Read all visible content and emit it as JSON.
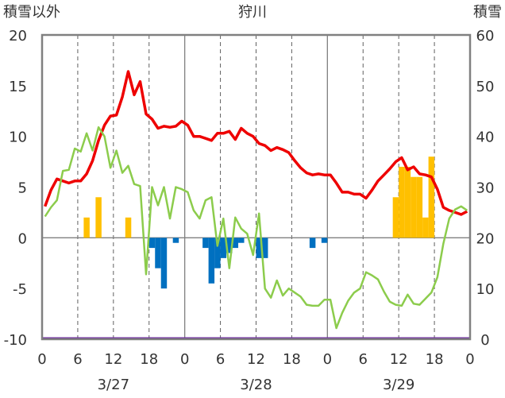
{
  "chart_data": {
    "type": "bar+line",
    "title": "狩川",
    "left_axis_title": "積雪以外",
    "right_axis_title": "積雪",
    "left_axis": {
      "range": [
        -10,
        20
      ],
      "ticks": [
        "-10",
        "-5",
        "0",
        "5",
        "10",
        "15",
        "20"
      ]
    },
    "right_axis": {
      "range": [
        0,
        60
      ],
      "ticks": [
        "0",
        "10",
        "20",
        "30",
        "40",
        "50",
        "60"
      ]
    },
    "x_axis": {
      "hour_ticks": [
        "0",
        "6",
        "12",
        "18",
        "0",
        "6",
        "12",
        "18",
        "0",
        "6",
        "12",
        "18",
        "0"
      ],
      "date_labels": [
        "3/27",
        "3/28",
        "3/29"
      ]
    },
    "grid": true,
    "colors": {
      "temperature": "#ee0000",
      "snow_depth": "#8ccc4c",
      "precipitation": "#ffc000",
      "snow_change": "#0070c0",
      "baseline": "#7030a0",
      "frame": "#808080"
    },
    "series": [
      {
        "key": "temperature",
        "axis": "left",
        "style": "line",
        "values": [
          3.1,
          4.7,
          5.8,
          5.6,
          5.4,
          5.6,
          5.6,
          6.3,
          7.6,
          9.6,
          11.1,
          12.0,
          12.1,
          13.9,
          16.4,
          14.1,
          15.4,
          12.2,
          11.7,
          10.8,
          11.0,
          10.9,
          11.0,
          11.5,
          11.1,
          10.0,
          10.0,
          9.8,
          9.6,
          10.3,
          10.3,
          10.5,
          9.7,
          10.8,
          10.3,
          10.0,
          9.3,
          9.1,
          8.6,
          8.9,
          8.7,
          8.4,
          7.6,
          6.9,
          6.4,
          6.2,
          6.3,
          6.2,
          6.2,
          5.4,
          4.5,
          4.5,
          4.3,
          4.3,
          3.9,
          4.7,
          5.6,
          6.2,
          6.8,
          7.5,
          7.9,
          6.7,
          7.0,
          6.3,
          6.2,
          6.0,
          4.8,
          3.0,
          2.7,
          2.5,
          2.3,
          2.6
        ]
      },
      {
        "key": "snow_depth",
        "axis": "right",
        "style": "line",
        "values": [
          24.2,
          26.0,
          27.4,
          33.2,
          33.4,
          37.6,
          37.0,
          40.6,
          37.2,
          41.8,
          40.0,
          33.8,
          37.2,
          32.8,
          34.2,
          30.6,
          30.2,
          12.8,
          30.0,
          26.4,
          30.0,
          23.8,
          30.0,
          29.6,
          29.0,
          25.4,
          23.8,
          27.4,
          28.0,
          18.4,
          23.8,
          14.0,
          24.0,
          21.8,
          20.8,
          16.6,
          24.8,
          10.0,
          8.2,
          11.6,
          8.6,
          10.0,
          9.2,
          8.4,
          6.8,
          6.6,
          6.6,
          7.8,
          7.8,
          2.2,
          5.2,
          7.6,
          9.2,
          10.0,
          13.2,
          12.6,
          11.8,
          9.4,
          7.4,
          6.8,
          6.6,
          8.8,
          7.0,
          6.8,
          8.0,
          9.2,
          12.2,
          18.8,
          23.8,
          25.6,
          26.2,
          25.4
        ]
      },
      {
        "key": "precipitation",
        "axis": "left",
        "style": "bar",
        "values": [
          0,
          0,
          0,
          0,
          0,
          0,
          0,
          2,
          0,
          4,
          0,
          0,
          0,
          0,
          2,
          0,
          0,
          0,
          0,
          0,
          0,
          0,
          0,
          0,
          0,
          0,
          0,
          0,
          0,
          0,
          0,
          0,
          0,
          0,
          0,
          0,
          0,
          0,
          0,
          0,
          0,
          0,
          0,
          0,
          0,
          0,
          0,
          0,
          0,
          0,
          0,
          0,
          0,
          0,
          0,
          0,
          0,
          0,
          0,
          4,
          7,
          7,
          6,
          6,
          2,
          8,
          0,
          0,
          0,
          0,
          0,
          0
        ]
      },
      {
        "key": "snow_change",
        "axis": "left",
        "style": "bar",
        "values": [
          0,
          0,
          0,
          0,
          0,
          0,
          0,
          0,
          0,
          0,
          0,
          0,
          0,
          0,
          0,
          0,
          0,
          0,
          -1,
          -3,
          -5,
          0,
          -0.5,
          0,
          0,
          0,
          0,
          -1,
          -4.5,
          -3,
          -2,
          -1.5,
          -1,
          -0.5,
          0,
          0,
          -2,
          -2,
          0,
          0,
          0,
          0,
          0,
          0,
          0,
          -1,
          0,
          -0.5,
          0,
          0,
          0,
          0,
          0,
          0,
          0,
          0,
          0,
          0,
          0,
          0,
          0,
          0,
          0,
          0,
          0,
          0,
          0,
          0,
          0,
          0,
          0,
          0
        ]
      }
    ]
  }
}
